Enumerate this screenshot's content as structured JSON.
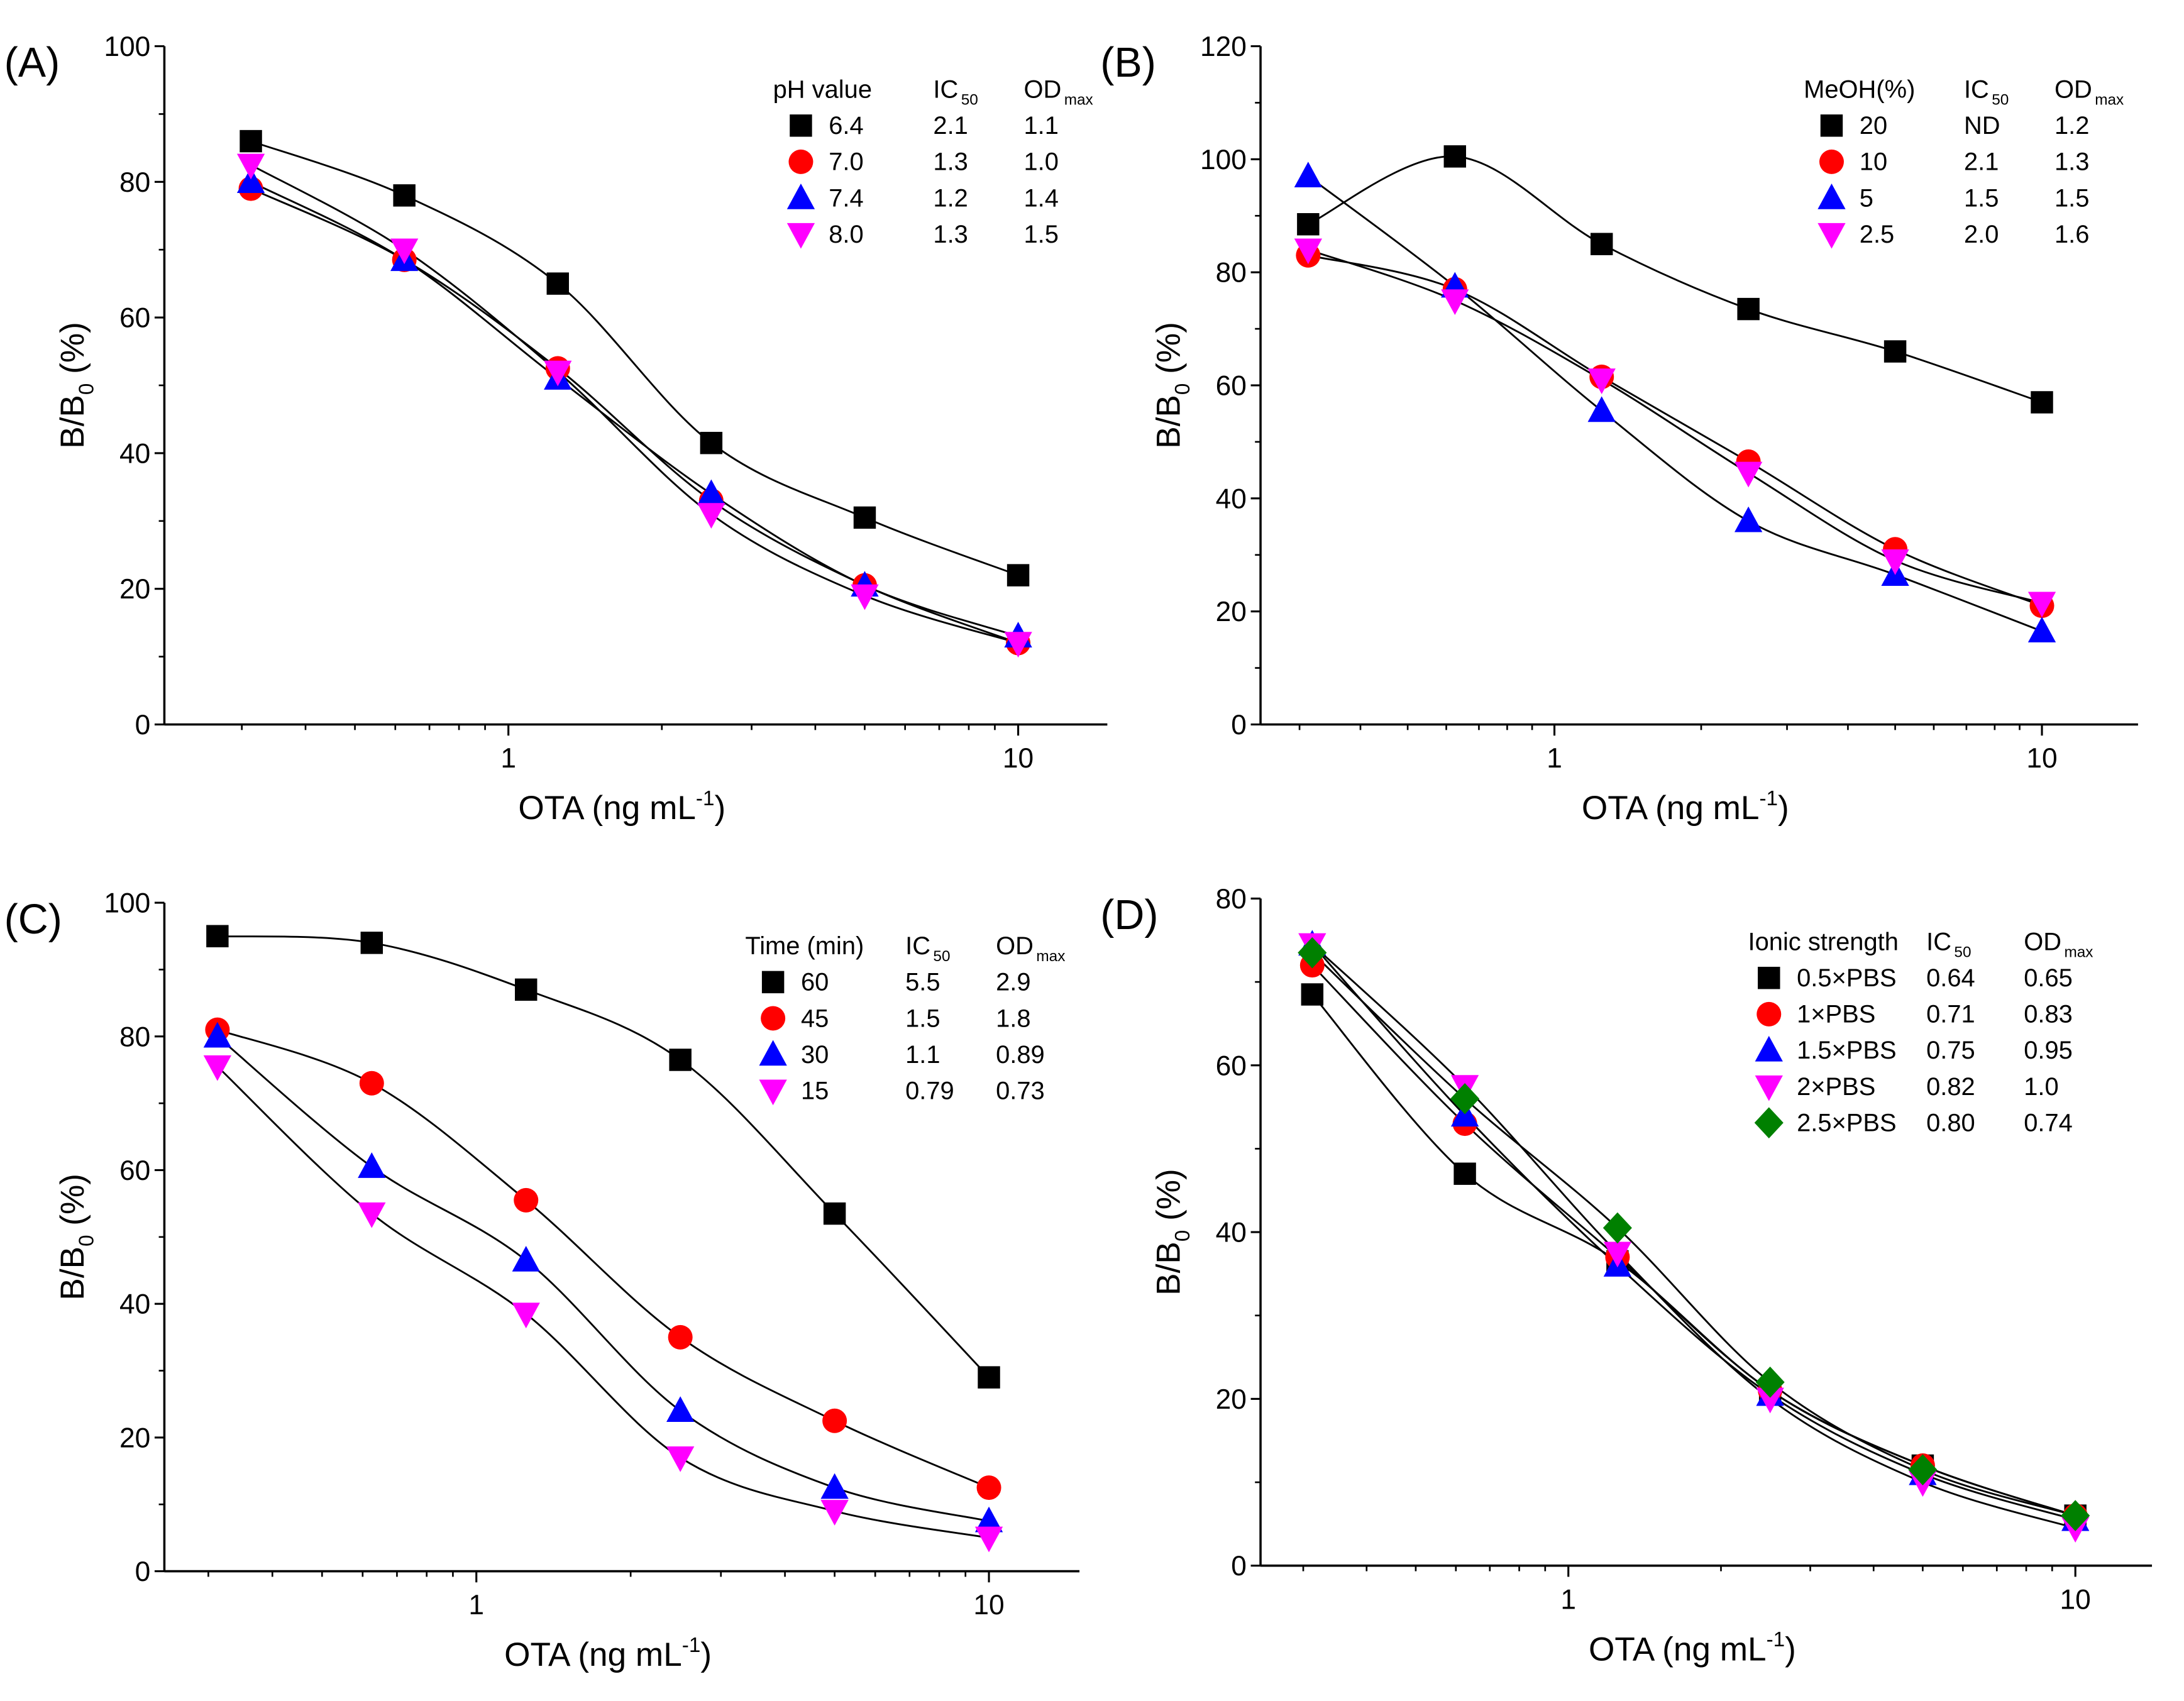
{
  "chart_data": [
    {
      "type": "scatter",
      "panel_label": "(A)",
      "xlabel": "OTA (ng mL",
      "xlabel_sup": "-1",
      "xlabel_end": ")",
      "ylabel": "B/B",
      "ylabel_sub": "0",
      "ylabel_end": " (%)",
      "xscale": "log",
      "xlim": [
        0.21,
        15
      ],
      "ylim": [
        0,
        100
      ],
      "yticks": [
        0,
        20,
        40,
        60,
        80,
        100
      ],
      "xticks": [
        1,
        10
      ],
      "xtick_labels": [
        "1",
        "10"
      ],
      "legend": {
        "title": "pH value",
        "col2": "IC",
        "col2_sub": "50",
        "col3": "OD",
        "col3_sub": "max",
        "placement": "top-right"
      },
      "x": [
        0.3125,
        0.625,
        1.25,
        2.5,
        5,
        10
      ],
      "series": [
        {
          "name": "6.4",
          "ic50": "2.1",
          "odmax": "1.1",
          "marker": "square",
          "color": "#000000",
          "values": [
            86,
            78,
            65,
            41.5,
            30.5,
            22
          ]
        },
        {
          "name": "7.0",
          "ic50": "1.3",
          "odmax": "1.0",
          "marker": "circle",
          "color": "#ff0000",
          "values": [
            79,
            68.5,
            52.5,
            33,
            20.5,
            12
          ]
        },
        {
          "name": "7.4",
          "ic50": "1.2",
          "odmax": "1.4",
          "marker": "triangle-up",
          "color": "#0000ff",
          "values": [
            80,
            68.5,
            51,
            34,
            20.5,
            13
          ]
        },
        {
          "name": "8.0",
          "ic50": "1.3",
          "odmax": "1.5",
          "marker": "triangle-down",
          "color": "#ff00ff",
          "values": [
            82.5,
            70,
            52,
            31,
            19,
            12
          ]
        }
      ]
    },
    {
      "type": "scatter",
      "panel_label": "(B)",
      "xlabel": "OTA (ng mL",
      "xlabel_sup": "-1",
      "xlabel_end": ")",
      "ylabel": "B/B",
      "ylabel_sub": "0",
      "ylabel_end": " (%)",
      "xscale": "log",
      "xlim": [
        0.21,
        15
      ],
      "ylim": [
        0,
        120
      ],
      "yticks": [
        0,
        20,
        40,
        60,
        80,
        100,
        120
      ],
      "xticks": [
        1,
        10
      ],
      "xtick_labels": [
        "1",
        "10"
      ],
      "legend": {
        "title": "MeOH(%)",
        "col2": "IC",
        "col2_sub": "50",
        "col3": "OD",
        "col3_sub": "max",
        "placement": "top-right"
      },
      "x": [
        0.3125,
        0.625,
        1.25,
        2.5,
        5,
        10
      ],
      "series": [
        {
          "name": "20",
          "ic50": "ND",
          "odmax": "1.2",
          "marker": "square",
          "color": "#000000",
          "values": [
            88.5,
            100.5,
            85,
            73.5,
            66,
            57
          ]
        },
        {
          "name": "10",
          "ic50": "2.1",
          "odmax": "1.3",
          "marker": "circle",
          "color": "#ff0000",
          "values": [
            83,
            77,
            61.5,
            46.5,
            31,
            21
          ]
        },
        {
          "name": "5",
          "ic50": "1.5",
          "odmax": "1.5",
          "marker": "triangle-up",
          "color": "#0000ff",
          "values": [
            97,
            77.5,
            55.5,
            36,
            26.5,
            16.5
          ]
        },
        {
          "name": "2.5",
          "ic50": "2.0",
          "odmax": "1.6",
          "marker": "triangle-down",
          "color": "#ff00ff",
          "values": [
            84,
            75,
            61,
            44.5,
            29,
            21.5
          ]
        }
      ]
    },
    {
      "type": "scatter",
      "panel_label": "(C)",
      "xlabel": "OTA (ng mL",
      "xlabel_sup": "-1",
      "xlabel_end": ")",
      "ylabel": "B/B",
      "ylabel_sub": "0",
      "ylabel_end": " (%)",
      "xscale": "log",
      "xlim": [
        0.21,
        15
      ],
      "ylim": [
        0,
        100
      ],
      "yticks": [
        0,
        20,
        40,
        60,
        80,
        100
      ],
      "xticks": [
        1,
        10
      ],
      "xtick_labels": [
        "1",
        "10"
      ],
      "legend": {
        "title": "Time (min)",
        "col2": "IC",
        "col2_sub": "50",
        "col3": "OD",
        "col3_sub": "max",
        "placement": "top-right"
      },
      "x": [
        0.3125,
        0.625,
        1.25,
        2.5,
        5,
        10
      ],
      "series": [
        {
          "name": "60",
          "ic50": "5.5",
          "odmax": "2.9",
          "marker": "square",
          "color": "#000000",
          "values": [
            95,
            94,
            87,
            76.5,
            53.5,
            29
          ]
        },
        {
          "name": "45",
          "ic50": "1.5",
          "odmax": "1.8",
          "marker": "circle",
          "color": "#ff0000",
          "values": [
            81,
            73,
            55.5,
            35,
            22.5,
            12.5
          ]
        },
        {
          "name": "30",
          "ic50": "1.1",
          "odmax": "0.89",
          "marker": "triangle-up",
          "color": "#0000ff",
          "values": [
            80,
            60.5,
            46.5,
            24,
            12.5,
            7.5
          ]
        },
        {
          "name": "15",
          "ic50": "0.79",
          "odmax": "0.73",
          "marker": "triangle-down",
          "color": "#ff00ff",
          "values": [
            75.5,
            53.5,
            38.5,
            17,
            9,
            5
          ]
        }
      ]
    },
    {
      "type": "scatter",
      "panel_label": "(D)",
      "xlabel": "OTA (ng mL",
      "xlabel_sup": "-1",
      "xlabel_end": ")",
      "ylabel": "B/B",
      "ylabel_sub": "0",
      "ylabel_end": " (%)",
      "xscale": "log",
      "xlim": [
        0.21,
        15
      ],
      "ylim": [
        0,
        80
      ],
      "yticks": [
        0,
        20,
        40,
        60,
        80
      ],
      "xticks": [
        1,
        10
      ],
      "xtick_labels": [
        "1",
        "10"
      ],
      "legend": {
        "title": "Ionic strength",
        "col2": "IC",
        "col2_sub": "50",
        "col3": "OD",
        "col3_sub": "max",
        "placement": "top-right"
      },
      "x": [
        0.3125,
        0.625,
        1.25,
        2.5,
        5,
        10
      ],
      "series": [
        {
          "name": "0.5×PBS",
          "ic50": "0.64",
          "odmax": "0.65",
          "marker": "square",
          "color": "#000000",
          "values": [
            68.5,
            47,
            36.5,
            21,
            12,
            6
          ]
        },
        {
          "name": "1×PBS",
          "ic50": "0.71",
          "odmax": "0.83",
          "marker": "circle",
          "color": "#ff0000",
          "values": [
            72,
            53,
            37,
            21,
            12,
            6
          ]
        },
        {
          "name": "1.5×PBS",
          "ic50": "0.75",
          "odmax": "0.95",
          "marker": "triangle-up",
          "color": "#0000ff",
          "values": [
            74.5,
            54,
            36,
            20.5,
            11,
            5.5
          ]
        },
        {
          "name": "2×PBS",
          "ic50": "0.82",
          "odmax": "1.0",
          "marker": "triangle-down",
          "color": "#ff00ff",
          "values": [
            74.5,
            57.5,
            37.5,
            20,
            10,
            4.5
          ]
        },
        {
          "name": "2.5×PBS",
          "ic50": "0.80",
          "odmax": "0.74",
          "marker": "diamond",
          "color": "#008000",
          "values": [
            73.5,
            56,
            40.5,
            22,
            11.5,
            6
          ]
        }
      ]
    }
  ]
}
